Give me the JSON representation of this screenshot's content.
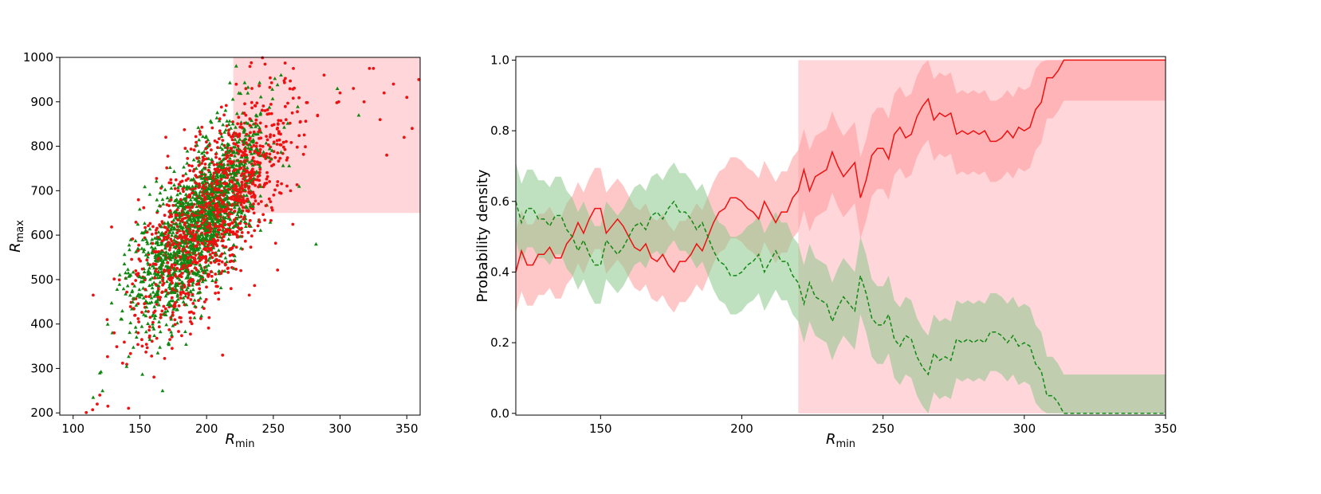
{
  "colors": {
    "red": "#ee1111",
    "green": "#118811",
    "red_fill": "#ff9a9a",
    "green_fill": "#8cc98c",
    "region_fill": "#ffd6d9"
  },
  "chart_data": [
    {
      "type": "scatter",
      "title": "",
      "xlabel_main": "R",
      "xlabel_sub": "min",
      "ylabel_main": "R",
      "ylabel_sub": "max",
      "xlim": [
        90,
        360
      ],
      "ylim": [
        195,
        1000
      ],
      "xticks": [
        100,
        150,
        200,
        250,
        300,
        350
      ],
      "yticks": [
        200,
        300,
        400,
        500,
        600,
        700,
        800,
        900,
        1000
      ],
      "highlight_region": {
        "x_from": 220,
        "x_to": 360,
        "y_from": 650,
        "y_to": 1000
      },
      "series": [
        {
          "name": "red points",
          "color": "red",
          "marker": "circle",
          "count": 1400,
          "center": [
            205,
            650
          ],
          "slope": 3.2,
          "spread": [
            28,
            85
          ],
          "outliers": [
            [
              322,
              975
            ],
            [
              325,
              975
            ],
            [
              333,
              920
            ],
            [
              340,
              940
            ],
            [
              350,
              910
            ],
            [
              359,
              950
            ],
            [
              354,
              840
            ],
            [
              348,
              820
            ],
            [
              335,
              780
            ],
            [
              330,
              860
            ],
            [
              318,
              900
            ],
            [
              310,
              930
            ],
            [
              299,
              900
            ],
            [
              300,
              920
            ],
            [
              265,
              975
            ],
            [
              288,
              960
            ],
            [
              115,
              465
            ],
            [
              118,
              220
            ],
            [
              120,
              240
            ],
            [
              126,
              215
            ],
            [
              232,
              465
            ],
            [
              212,
              330
            ]
          ]
        },
        {
          "name": "green points",
          "color": "green",
          "marker": "triangle",
          "count": 1500,
          "center": [
            193,
            628
          ],
          "slope": 3.4,
          "spread": [
            24,
            78
          ],
          "outliers": [
            [
              115,
              235
            ],
            [
              120,
              290
            ],
            [
              122,
              250
            ],
            [
              167,
              250
            ],
            [
              282,
              580
            ],
            [
              298,
              930
            ],
            [
              314,
              870
            ]
          ]
        }
      ]
    },
    {
      "type": "line",
      "title": "",
      "xlabel_main": "R",
      "xlabel_sub": "min",
      "ylabel": "Probability density",
      "xlim": [
        120,
        350
      ],
      "ylim": [
        -0.005,
        1.01
      ],
      "xticks": [
        150,
        200,
        250,
        300,
        350
      ],
      "yticks": [
        0.0,
        0.2,
        0.4,
        0.6,
        0.8,
        1.0
      ],
      "ytick_labels": [
        "0.0",
        "0.2",
        "0.4",
        "0.6",
        "0.8",
        "1.0"
      ],
      "highlight_region": {
        "x_from": 220,
        "x_to": 350,
        "y_from": 0.0,
        "y_to": 1.0
      },
      "x": [
        120,
        122,
        124,
        126,
        128,
        130,
        132,
        134,
        136,
        138,
        140,
        142,
        144,
        146,
        148,
        150,
        152,
        154,
        156,
        158,
        160,
        162,
        164,
        166,
        168,
        170,
        172,
        174,
        176,
        178,
        180,
        182,
        184,
        186,
        188,
        190,
        192,
        194,
        196,
        198,
        200,
        202,
        204,
        206,
        208,
        210,
        212,
        214,
        216,
        218,
        220,
        222,
        224,
        226,
        228,
        230,
        232,
        234,
        236,
        238,
        240,
        242,
        244,
        246,
        248,
        250,
        252,
        254,
        256,
        258,
        260,
        262,
        264,
        266,
        268,
        270,
        272,
        274,
        276,
        278,
        280,
        282,
        284,
        286,
        288,
        290,
        292,
        294,
        296,
        298,
        300,
        302,
        304,
        306,
        308,
        310,
        312,
        314,
        316,
        318,
        320,
        322,
        324,
        326,
        328,
        330,
        332,
        334,
        336,
        338,
        340,
        342,
        344,
        346,
        348,
        350
      ],
      "series": [
        {
          "name": "red line",
          "color": "red",
          "style": "solid",
          "values": [
            0.4,
            0.46,
            0.42,
            0.42,
            0.45,
            0.45,
            0.47,
            0.44,
            0.44,
            0.48,
            0.5,
            0.54,
            0.51,
            0.55,
            0.58,
            0.58,
            0.51,
            0.53,
            0.55,
            0.53,
            0.5,
            0.47,
            0.46,
            0.48,
            0.44,
            0.43,
            0.45,
            0.42,
            0.4,
            0.43,
            0.43,
            0.45,
            0.48,
            0.46,
            0.5,
            0.54,
            0.57,
            0.58,
            0.61,
            0.61,
            0.6,
            0.58,
            0.57,
            0.55,
            0.6,
            0.57,
            0.54,
            0.57,
            0.57,
            0.61,
            0.63,
            0.69,
            0.63,
            0.67,
            0.68,
            0.69,
            0.74,
            0.7,
            0.67,
            0.69,
            0.71,
            0.61,
            0.66,
            0.73,
            0.75,
            0.75,
            0.72,
            0.79,
            0.81,
            0.78,
            0.79,
            0.84,
            0.87,
            0.89,
            0.83,
            0.85,
            0.84,
            0.85,
            0.79,
            0.8,
            0.79,
            0.8,
            0.79,
            0.8,
            0.77,
            0.77,
            0.78,
            0.8,
            0.78,
            0.81,
            0.8,
            0.81,
            0.86,
            0.88,
            0.95,
            0.95,
            0.97,
            1.0,
            1.0,
            1.0,
            1.0,
            1.0,
            1.0,
            1.0,
            1.0,
            1.0,
            1.0,
            1.0,
            1.0,
            1.0,
            1.0,
            1.0,
            1.0,
            1.0,
            1.0,
            1.0
          ],
          "band": 0.115
        },
        {
          "name": "green line",
          "color": "green",
          "style": "dashed",
          "values": [
            0.6,
            0.54,
            0.58,
            0.58,
            0.55,
            0.55,
            0.53,
            0.56,
            0.56,
            0.52,
            0.5,
            0.46,
            0.49,
            0.45,
            0.42,
            0.42,
            0.49,
            0.47,
            0.45,
            0.47,
            0.5,
            0.53,
            0.54,
            0.52,
            0.56,
            0.57,
            0.55,
            0.58,
            0.6,
            0.57,
            0.57,
            0.55,
            0.52,
            0.54,
            0.5,
            0.46,
            0.43,
            0.42,
            0.39,
            0.39,
            0.4,
            0.42,
            0.43,
            0.45,
            0.4,
            0.43,
            0.46,
            0.43,
            0.43,
            0.39,
            0.37,
            0.31,
            0.37,
            0.33,
            0.32,
            0.31,
            0.26,
            0.3,
            0.33,
            0.31,
            0.29,
            0.39,
            0.34,
            0.27,
            0.25,
            0.25,
            0.28,
            0.21,
            0.19,
            0.22,
            0.21,
            0.16,
            0.13,
            0.11,
            0.17,
            0.15,
            0.16,
            0.15,
            0.21,
            0.2,
            0.21,
            0.2,
            0.21,
            0.2,
            0.23,
            0.23,
            0.22,
            0.2,
            0.22,
            0.19,
            0.2,
            0.19,
            0.14,
            0.12,
            0.05,
            0.05,
            0.03,
            0.0,
            0.0,
            0.0,
            0.0,
            0.0,
            0.0,
            0.0,
            0.0,
            0.0,
            0.0,
            0.0,
            0.0,
            0.0,
            0.0,
            0.0,
            0.0,
            0.0,
            0.0,
            0.0
          ],
          "band": 0.11
        }
      ]
    }
  ]
}
